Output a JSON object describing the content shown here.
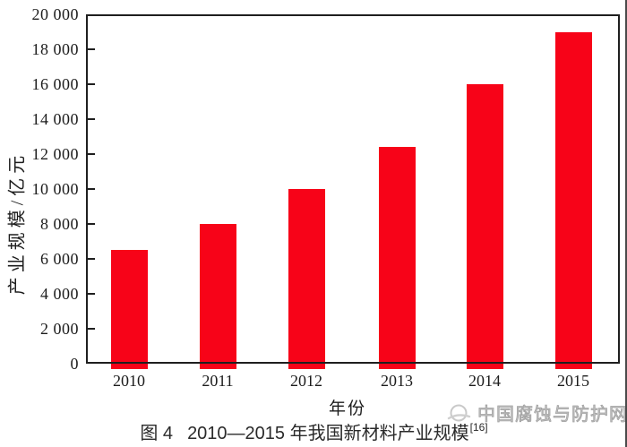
{
  "chart_data": {
    "type": "bar",
    "title": "",
    "categories": [
      "2010",
      "2011",
      "2012",
      "2013",
      "2014",
      "2015"
    ],
    "values": [
      6500,
      8000,
      10000,
      12400,
      16000,
      19000
    ],
    "xlabel": "年份",
    "ylabel": "产业规模/亿元",
    "ylim": [
      0,
      20000
    ],
    "ytick_step": 2000,
    "ytick_labels": [
      "0",
      "2 000",
      "4 000",
      "6 000",
      "8 000",
      "10 000",
      "12 000",
      "14 000",
      "16 000",
      "18 000",
      "20 000"
    ],
    "grid": false,
    "legend": "none",
    "bar_color": "#f70318"
  },
  "caption": {
    "figure_label": "图 4",
    "title": "2010—2015 年我国新材料产业规模",
    "reference_superscript": "[16]"
  },
  "watermark": {
    "icon": "swirl-logo-icon",
    "text": "中国腐蚀与防护网"
  },
  "colors": {
    "bar_red": "#f70318",
    "axis_black": "#1f1f1f",
    "watermark_gray": "#c3c3c3"
  }
}
